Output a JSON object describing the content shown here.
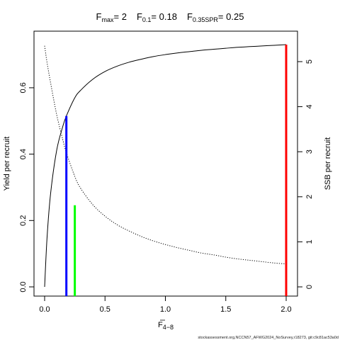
{
  "chart_data": {
    "type": "line",
    "title": {
      "fmax_sym": "F",
      "fmax_sub": "max",
      "fmax_val": "= 2",
      "f01_sym": "F",
      "f01_sub": "0.1",
      "f01_val": "= 0.18",
      "f35_sym": "F",
      "f35_sub": "0.35SPR",
      "f35_val": "= 0.25"
    },
    "xlabel": {
      "main": "F",
      "sub": "4−8"
    },
    "ylabel_left": "Yield per recruit",
    "ylabel_right": "SSB per recruit",
    "x_axis": {
      "range": [
        0,
        2
      ],
      "ticks": [
        0,
        0.5,
        1,
        1.5,
        2
      ],
      "tick_labels": [
        "0.0",
        "0.5",
        "1.0",
        "1.5",
        "2.0"
      ]
    },
    "y_left": {
      "range": [
        0,
        0.73
      ],
      "ticks": [
        0,
        0.2,
        0.4,
        0.6
      ],
      "tick_labels": [
        "0.0",
        "0.2",
        "0.4",
        "0.6"
      ]
    },
    "y_right": {
      "range": [
        0,
        5.4
      ],
      "ticks": [
        0,
        1,
        2,
        3,
        4,
        5
      ],
      "tick_labels": [
        "0",
        "1",
        "2",
        "3",
        "4",
        "5"
      ]
    },
    "series": [
      {
        "key": "ypr",
        "axis": "left",
        "style": "solid",
        "color": "#000000",
        "x": [
          0,
          0.02,
          0.05,
          0.1,
          0.15,
          0.18,
          0.25,
          0.3,
          0.4,
          0.5,
          0.6,
          0.7,
          0.8,
          0.9,
          1.0,
          1.1,
          1.2,
          1.3,
          1.4,
          1.5,
          1.6,
          1.7,
          1.8,
          1.9,
          2.0
        ],
        "y": [
          0.0,
          0.148,
          0.283,
          0.412,
          0.483,
          0.515,
          0.57,
          0.593,
          0.626,
          0.649,
          0.665,
          0.677,
          0.686,
          0.694,
          0.7,
          0.705,
          0.709,
          0.713,
          0.716,
          0.719,
          0.722,
          0.724,
          0.726,
          0.728,
          0.73
        ]
      },
      {
        "key": "ssb",
        "axis": "right",
        "style": "dotted",
        "color": "#000000",
        "x": [
          0,
          0.02,
          0.05,
          0.1,
          0.15,
          0.18,
          0.25,
          0.3,
          0.4,
          0.5,
          0.6,
          0.7,
          0.8,
          0.9,
          1.0,
          1.1,
          1.2,
          1.3,
          1.4,
          1.5,
          1.6,
          1.7,
          1.8,
          1.9,
          2.0
        ],
        "y": [
          5.35,
          4.98,
          4.52,
          3.82,
          3.27,
          2.98,
          2.45,
          2.18,
          1.82,
          1.57,
          1.38,
          1.24,
          1.12,
          1.02,
          0.94,
          0.87,
          0.81,
          0.75,
          0.71,
          0.66,
          0.62,
          0.59,
          0.56,
          0.53,
          0.51
        ]
      }
    ],
    "reference_lines": [
      {
        "key": "f01",
        "x": 0.18,
        "y_top": 0.515,
        "axis": "left",
        "color": "#0000ff"
      },
      {
        "key": "f35",
        "x": 0.25,
        "y_top": 0.246,
        "axis": "left",
        "color": "#00ff00"
      },
      {
        "key": "fmax",
        "x": 2.0,
        "y_top": 0.73,
        "axis": "left",
        "color": "#ff0000"
      }
    ],
    "grid": false,
    "legend": "none"
  },
  "footer": "stockassessment.org,NCCN57_AFWG2024_NoSurvey,r18273, git:c9c81ac53a0d"
}
